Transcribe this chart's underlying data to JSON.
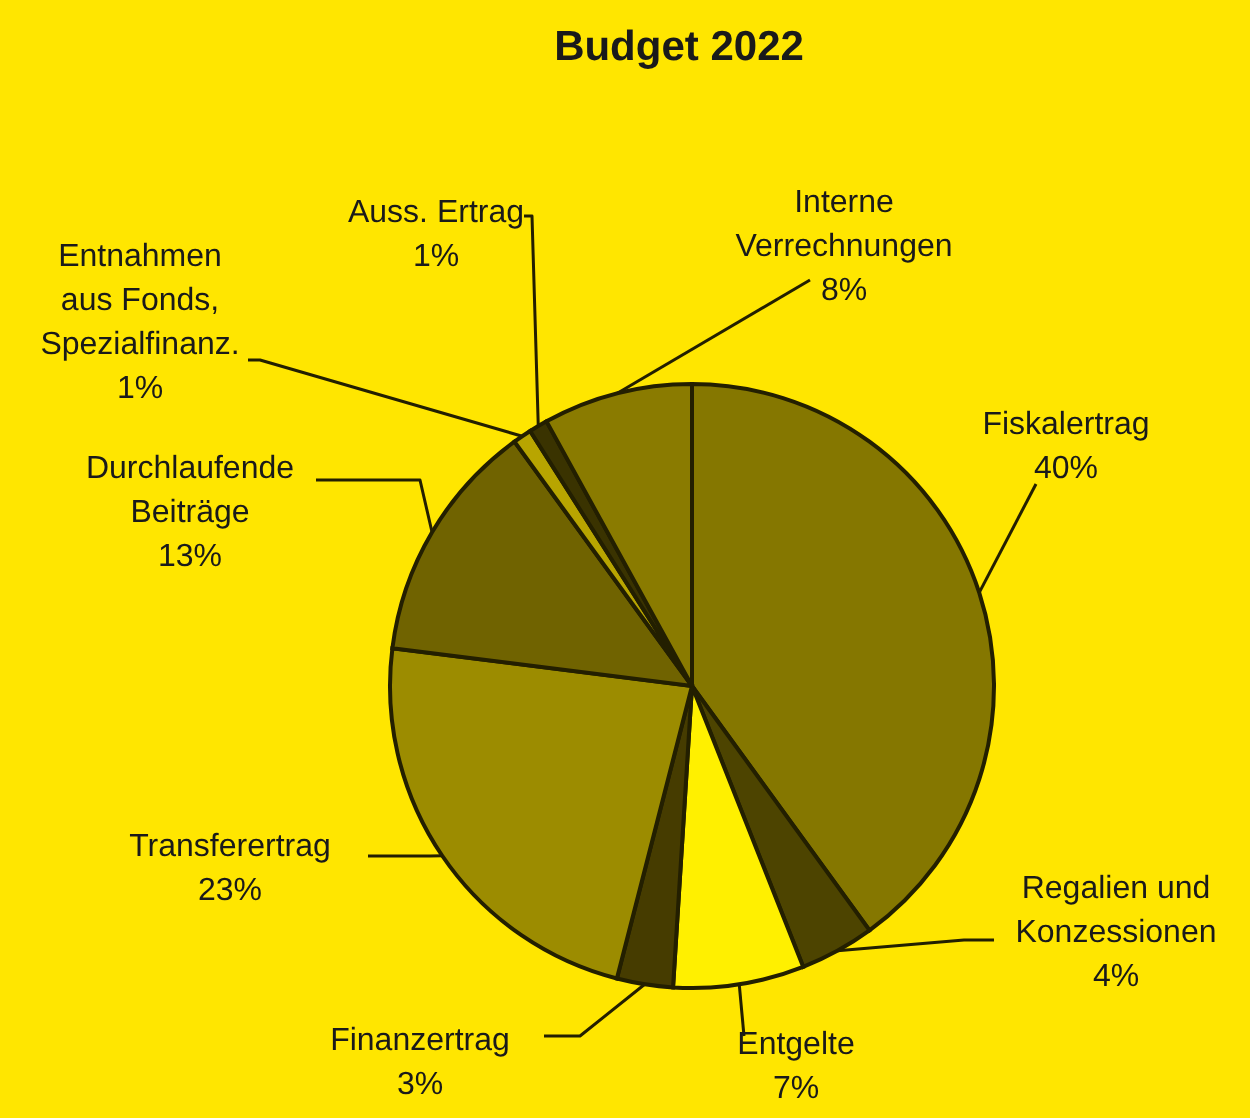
{
  "chart_data": {
    "type": "pie",
    "title": "Budget 2022",
    "categories": [
      "Fiskalertrag",
      "Regalien und\nKonzessionen",
      "Entgelte",
      "Finanzertrag",
      "Transferertrag",
      "Durchlaufende\nBeiträge",
      "Entnahmen\naus Fonds,\nSpezialfinanz.",
      "Auss. Ertrag",
      "Interne\nVerrechnungen"
    ],
    "values": [
      40,
      4,
      7,
      3,
      23,
      13,
      1,
      1,
      8
    ],
    "value_labels": [
      "40%",
      "4%",
      "7%",
      "3%",
      "23%",
      "13%",
      "1%",
      "1%",
      "8%"
    ],
    "colors": [
      "#857700",
      "#4d4400",
      "#fff000",
      "#463c00",
      "#9c8c00",
      "#706300",
      "#b8a500",
      "#3a3300",
      "#8a7b00"
    ]
  }
}
